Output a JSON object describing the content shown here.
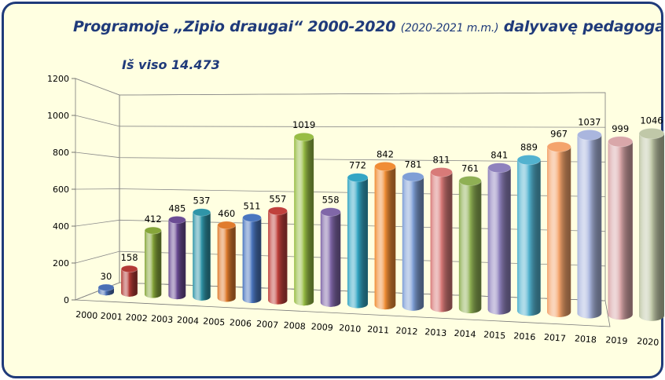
{
  "title": {
    "main": "Programoje „Zipio draugai“ 2000-2020",
    "sub": "(2020-2021 m.m.)",
    "tail": "dalyvavę pedagogai"
  },
  "total_label": "Iš viso 14.473",
  "colors": {
    "frame_border": "#1f3a7a",
    "background": "#ffffe1",
    "title": "#1f3a7a"
  },
  "chart_data": {
    "type": "bar",
    "style": "3d-cylinder",
    "categories": [
      "2000",
      "2001",
      "2002",
      "2003",
      "2004",
      "2005",
      "2006",
      "2007",
      "2008",
      "2009",
      "2010",
      "2011",
      "2012",
      "2013",
      "2014",
      "2015",
      "2016",
      "2017",
      "2018",
      "2019",
      "2020"
    ],
    "values": [
      30,
      158,
      412,
      485,
      537,
      460,
      511,
      557,
      1019,
      558,
      772,
      842,
      781,
      811,
      761,
      841,
      889,
      967,
      1037,
      999,
      1046
    ],
    "bar_colors": [
      "#4a6fb5",
      "#b23a35",
      "#86a63a",
      "#6b4c94",
      "#2f95a8",
      "#e07c2e",
      "#4a76bf",
      "#c0413c",
      "#98bd45",
      "#8067a8",
      "#34a6c4",
      "#f08d35",
      "#7f9fd6",
      "#d87a78",
      "#8fb054",
      "#8f82bd",
      "#52b2cf",
      "#f4a46c",
      "#aab6de",
      "#d9a7a9",
      "#c0c8a8"
    ],
    "yticks": [
      0,
      200,
      400,
      600,
      800,
      1000,
      1200
    ],
    "ylim": [
      0,
      1200
    ],
    "grid": true,
    "legend": "none"
  }
}
